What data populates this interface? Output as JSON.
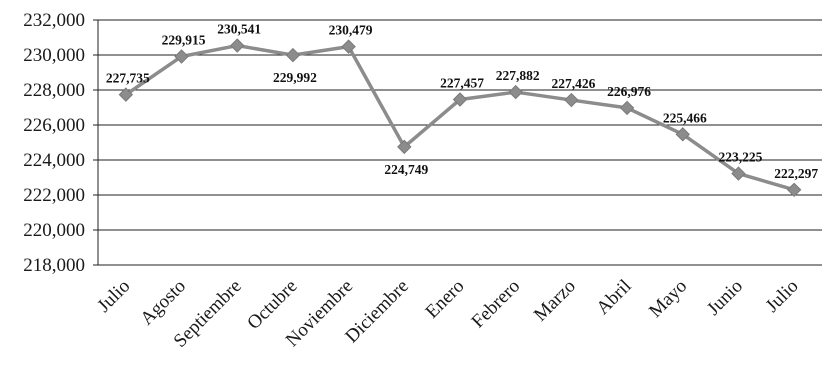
{
  "chart_data": {
    "type": "line",
    "title": "",
    "xlabel": "",
    "ylabel": "",
    "categories": [
      "Julio",
      "Agosto",
      "Septiembre",
      "Octubre",
      "Noviembre",
      "Diciembre",
      "Enero",
      "Febrero",
      "Marzo",
      "Abril",
      "Mayo",
      "Junio",
      "Julio"
    ],
    "series": [
      {
        "values": [
          227735,
          229915,
          230541,
          229992,
          230479,
          224749,
          227457,
          227882,
          227426,
          226976,
          225466,
          223225,
          222297
        ],
        "labels": [
          "227,735",
          "229,915",
          "230,541",
          "229,992",
          "230,479",
          "224,749",
          "227,457",
          "227,882",
          "227,426",
          "226,976",
          "225,466",
          "223,225",
          "222,297"
        ],
        "color": "#8c8c8c",
        "marker": "diamond"
      }
    ],
    "ylim": [
      218000,
      232000
    ],
    "yticks": [
      218000,
      220000,
      222000,
      224000,
      226000,
      228000,
      230000,
      232000
    ],
    "ytick_labels": [
      "218,000",
      "220,000",
      "222,000",
      "224,000",
      "226,000",
      "228,000",
      "230,000",
      "232,000"
    ],
    "grid": true,
    "legend": "none"
  }
}
